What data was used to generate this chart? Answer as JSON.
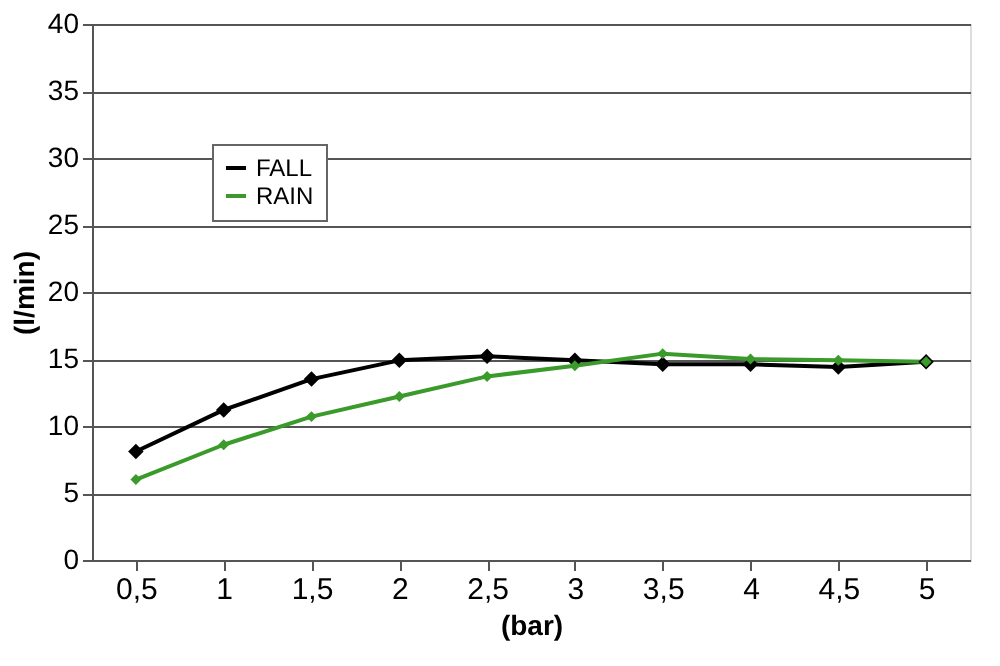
{
  "chart_data": {
    "type": "line",
    "xlabel": "(bar)",
    "ylabel": "(l/min)",
    "categories": [
      "0,5",
      "1",
      "1,5",
      "2",
      "2,5",
      "3",
      "3,5",
      "4",
      "4,5",
      "5"
    ],
    "series": [
      {
        "name": "FALL",
        "color": "#000000",
        "values": [
          8.1,
          11.2,
          13.5,
          14.9,
          15.2,
          14.9,
          14.6,
          14.6,
          14.4,
          14.8
        ]
      },
      {
        "name": "RAIN",
        "color": "#3a9a2a",
        "values": [
          6.0,
          8.6,
          10.7,
          12.2,
          13.7,
          14.5,
          15.4,
          15.0,
          14.9,
          14.8
        ]
      }
    ],
    "ylim": [
      0,
      40
    ],
    "yticks": [
      0,
      5,
      10,
      15,
      20,
      25,
      30,
      35,
      40
    ],
    "grid": "y",
    "legend": "top left",
    "marker": "diamond",
    "line_style": "solid"
  }
}
